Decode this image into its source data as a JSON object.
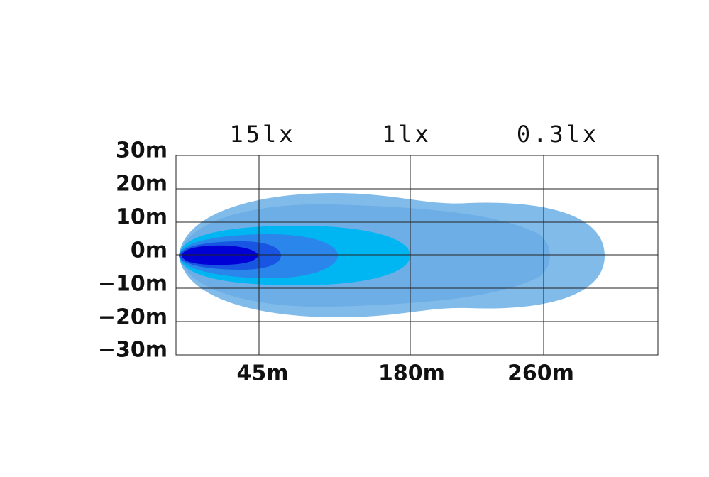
{
  "y_axis": {
    "labels": [
      "30m",
      "20m",
      "10m",
      "0m",
      "−10m",
      "−20m",
      "−30m"
    ]
  },
  "x_axis": {
    "labels": [
      "45m",
      "180m",
      "260m"
    ]
  },
  "zones": {
    "labels": [
      "15lx",
      "1lx",
      "0.3lx"
    ]
  }
}
